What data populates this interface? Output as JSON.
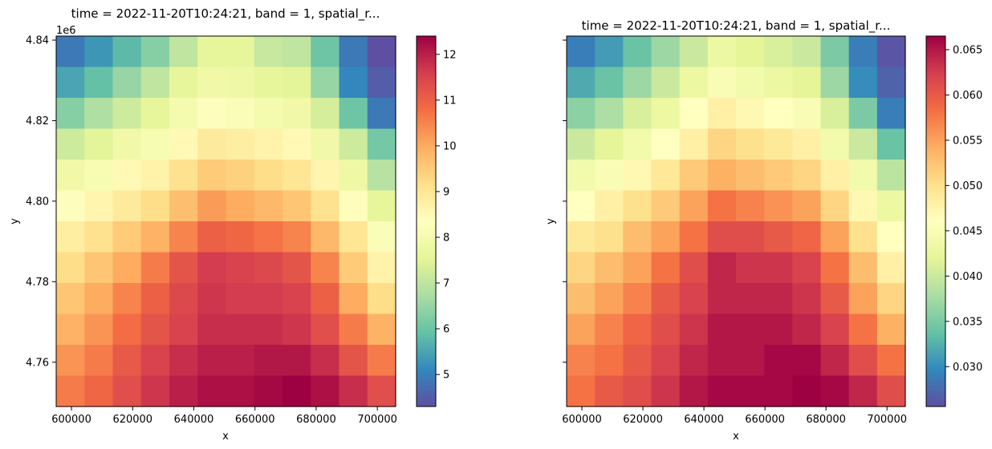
{
  "chart_data": [
    {
      "type": "heatmap",
      "title": "time = 2022-11-20T10:24:21, band = 1, spatial_r...",
      "xlabel": "x",
      "ylabel": "y",
      "y_offset_label": "1e6",
      "x_ticks": [
        "600000",
        "620000",
        "640000",
        "660000",
        "680000",
        "700000"
      ],
      "x_tick_values": [
        600000,
        620000,
        640000,
        660000,
        680000,
        700000
      ],
      "y_ticks": [
        "4.76",
        "4.78",
        "4.80",
        "4.82",
        "4.84"
      ],
      "y_tick_values": [
        4.76,
        4.78,
        4.8,
        4.82,
        4.84
      ],
      "y_tick_labels_visible": true,
      "xlim": [
        595000,
        706000
      ],
      "ylim": [
        4.749,
        4.841
      ],
      "colormap": "Spectral_r",
      "colorbar": {
        "range": [
          4.3,
          12.4
        ],
        "ticks": [
          "5",
          "6",
          "7",
          "8",
          "9",
          "10",
          "11",
          "12"
        ],
        "tick_values": [
          5,
          6,
          7,
          8,
          9,
          10,
          11,
          12
        ]
      },
      "grid": [
        [
          4.9,
          5.3,
          5.8,
          6.3,
          7.0,
          7.6,
          7.6,
          7.1,
          7.0,
          6.0,
          4.9,
          4.3
        ],
        [
          5.5,
          5.9,
          6.5,
          7.0,
          7.6,
          7.9,
          7.8,
          7.6,
          7.5,
          6.5,
          5.1,
          4.5
        ],
        [
          6.3,
          6.8,
          7.2,
          7.6,
          8.0,
          8.3,
          8.2,
          8.0,
          7.9,
          7.3,
          6.0,
          4.9
        ],
        [
          7.2,
          7.5,
          7.9,
          8.1,
          8.5,
          8.9,
          8.8,
          8.7,
          8.5,
          7.9,
          7.2,
          6.1
        ],
        [
          7.9,
          8.1,
          8.5,
          8.7,
          9.1,
          9.5,
          9.4,
          9.2,
          9.0,
          8.6,
          7.8,
          6.9
        ],
        [
          8.3,
          8.6,
          8.9,
          9.2,
          9.7,
          10.2,
          10.0,
          9.8,
          9.6,
          9.1,
          8.4,
          7.6
        ],
        [
          8.8,
          9.1,
          9.5,
          9.9,
          10.5,
          11.0,
          10.9,
          10.7,
          10.5,
          9.8,
          9.0,
          8.2
        ],
        [
          9.2,
          9.6,
          10.0,
          10.6,
          11.2,
          11.6,
          11.5,
          11.4,
          11.2,
          10.5,
          9.5,
          8.7
        ],
        [
          9.6,
          10.0,
          10.5,
          11.0,
          11.4,
          11.7,
          11.6,
          11.6,
          11.5,
          11.0,
          10.0,
          9.2
        ],
        [
          9.9,
          10.3,
          10.8,
          11.2,
          11.5,
          11.8,
          11.8,
          11.8,
          11.7,
          11.3,
          10.6,
          9.9
        ],
        [
          10.3,
          10.6,
          11.1,
          11.5,
          11.8,
          12.0,
          12.0,
          12.1,
          12.1,
          11.8,
          11.2,
          10.6
        ],
        [
          10.6,
          10.9,
          11.3,
          11.7,
          12.0,
          12.2,
          12.2,
          12.3,
          12.4,
          12.2,
          11.8,
          11.3
        ]
      ]
    },
    {
      "type": "heatmap",
      "title": "time = 2022-11-20T10:24:21, band = 1, spatial_r...",
      "xlabel": "x",
      "ylabel": "y",
      "y_offset_label": "",
      "x_ticks": [
        "600000",
        "620000",
        "640000",
        "660000",
        "680000",
        "700000"
      ],
      "x_tick_values": [
        600000,
        620000,
        640000,
        660000,
        680000,
        700000
      ],
      "y_ticks": [],
      "y_tick_values": [
        4.76,
        4.78,
        4.8,
        4.82,
        4.84
      ],
      "y_tick_labels_visible": false,
      "xlim": [
        595000,
        706000
      ],
      "ylim": [
        4.749,
        4.841
      ],
      "colormap": "Spectral_r",
      "colorbar": {
        "range": [
          0.0256,
          0.0665
        ],
        "ticks": [
          "0.030",
          "0.035",
          "0.040",
          "0.045",
          "0.050",
          "0.055",
          "0.060",
          "0.065"
        ],
        "tick_values": [
          0.03,
          0.035,
          0.04,
          0.045,
          0.05,
          0.055,
          0.06,
          0.065
        ]
      },
      "grid": [
        [
          0.029,
          0.031,
          0.034,
          0.037,
          0.04,
          0.043,
          0.042,
          0.041,
          0.04,
          0.035,
          0.029,
          0.026
        ],
        [
          0.032,
          0.034,
          0.037,
          0.04,
          0.043,
          0.045,
          0.044,
          0.043,
          0.042,
          0.037,
          0.03,
          0.027
        ],
        [
          0.036,
          0.038,
          0.041,
          0.043,
          0.046,
          0.048,
          0.047,
          0.046,
          0.045,
          0.041,
          0.035,
          0.029
        ],
        [
          0.04,
          0.042,
          0.044,
          0.046,
          0.048,
          0.051,
          0.05,
          0.049,
          0.048,
          0.044,
          0.04,
          0.034
        ],
        [
          0.044,
          0.045,
          0.047,
          0.049,
          0.052,
          0.054,
          0.053,
          0.052,
          0.051,
          0.048,
          0.044,
          0.039
        ],
        [
          0.046,
          0.048,
          0.05,
          0.052,
          0.055,
          0.058,
          0.057,
          0.056,
          0.055,
          0.051,
          0.047,
          0.043
        ],
        [
          0.049,
          0.05,
          0.053,
          0.055,
          0.058,
          0.061,
          0.061,
          0.06,
          0.059,
          0.055,
          0.05,
          0.046
        ],
        [
          0.051,
          0.053,
          0.055,
          0.058,
          0.061,
          0.064,
          0.063,
          0.063,
          0.062,
          0.058,
          0.053,
          0.048
        ],
        [
          0.053,
          0.055,
          0.057,
          0.06,
          0.062,
          0.064,
          0.064,
          0.064,
          0.063,
          0.06,
          0.055,
          0.051
        ],
        [
          0.055,
          0.057,
          0.059,
          0.061,
          0.063,
          0.065,
          0.065,
          0.065,
          0.064,
          0.062,
          0.058,
          0.054
        ],
        [
          0.057,
          0.058,
          0.06,
          0.062,
          0.064,
          0.065,
          0.065,
          0.066,
          0.066,
          0.064,
          0.061,
          0.058
        ],
        [
          0.058,
          0.06,
          0.061,
          0.063,
          0.065,
          0.066,
          0.066,
          0.066,
          0.0665,
          0.066,
          0.064,
          0.061
        ]
      ]
    }
  ]
}
